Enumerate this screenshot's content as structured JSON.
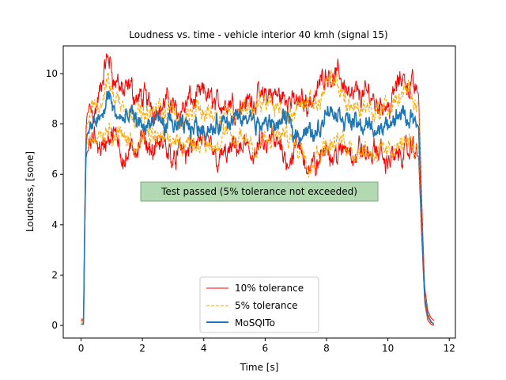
{
  "chart_data": {
    "type": "line",
    "title": "Loudness vs. time - vehicle interior 40 kmh (signal 15)",
    "xlabel": "Time [s]",
    "ylabel": "Loudness, [sone]",
    "xlim": [
      -0.58,
      12.2
    ],
    "ylim": [
      -0.5,
      11.1
    ],
    "xticks": [
      0,
      2,
      4,
      6,
      8,
      10,
      12
    ],
    "yticks": [
      0,
      2,
      4,
      6,
      8,
      10
    ],
    "grid": false,
    "legend_position": "lower-center",
    "annotation": {
      "text": "Test passed (5% tolerance not exceeded)",
      "x": 5.8,
      "y": 5.35,
      "facecolor": "#b2d9b2",
      "edgecolor": "#7fa87f"
    },
    "series": [
      {
        "name": "10% tolerance",
        "color": "#ff0000",
        "style": "solid",
        "x": [
          0,
          0.08,
          0.12,
          0.16,
          0.2,
          0.3,
          0.5,
          0.7,
          0.9,
          1.1,
          1.5,
          2,
          3,
          4,
          5,
          6,
          7,
          7.5,
          8,
          9,
          10,
          10.5,
          10.8,
          11.0,
          11.1,
          11.2,
          11.3,
          11.4,
          11.5
        ],
        "upper": [
          0.25,
          0.25,
          4.5,
          7.8,
          8.4,
          8.6,
          8.9,
          9.4,
          10.5,
          9.7,
          9.1,
          8.9,
          8.8,
          9.0,
          8.9,
          9.1,
          8.9,
          9.0,
          10.3,
          9.2,
          8.9,
          9.9,
          9.5,
          9.2,
          5.0,
          1.5,
          0.6,
          0.3,
          0.2
        ],
        "lower": [
          0.2,
          0.2,
          3.5,
          6.6,
          6.9,
          7.0,
          7.1,
          7.2,
          7.4,
          7.2,
          6.9,
          6.9,
          6.9,
          7.0,
          6.8,
          7.0,
          6.9,
          6.2,
          6.9,
          6.8,
          6.6,
          6.8,
          6.9,
          6.7,
          3.5,
          0.9,
          0.2,
          0.05,
          0.0
        ]
      },
      {
        "name": "5% tolerance",
        "color": "#ffa500",
        "style": "dashed",
        "x": [
          0,
          0.08,
          0.12,
          0.16,
          0.2,
          0.3,
          0.5,
          0.7,
          0.9,
          1.1,
          1.5,
          2,
          3,
          4,
          5,
          6,
          7,
          7.5,
          8,
          9,
          10,
          10.5,
          10.8,
          11.0,
          11.1,
          11.2,
          11.3,
          11.4,
          11.5
        ],
        "upper": [
          0.15,
          0.15,
          4.2,
          7.5,
          8.0,
          8.2,
          8.5,
          8.9,
          9.8,
          9.1,
          8.6,
          8.5,
          8.4,
          8.6,
          8.5,
          8.7,
          8.5,
          8.6,
          9.6,
          8.7,
          8.5,
          9.3,
          9.0,
          8.8,
          4.7,
          1.3,
          0.5,
          0.2,
          0.1
        ],
        "lower": [
          0.1,
          0.1,
          3.8,
          6.9,
          7.3,
          7.4,
          7.5,
          7.6,
          7.9,
          7.6,
          7.3,
          7.3,
          7.3,
          7.4,
          7.2,
          7.4,
          7.3,
          6.7,
          7.4,
          7.2,
          7.0,
          7.3,
          7.3,
          7.1,
          3.8,
          1.0,
          0.3,
          0.1,
          0.05
        ]
      },
      {
        "name": "MoSQITo",
        "color": "#1f77b4",
        "style": "solid",
        "x": [
          0,
          0.08,
          0.12,
          0.16,
          0.2,
          0.3,
          0.5,
          0.7,
          0.9,
          1.1,
          1.5,
          2,
          3,
          4,
          5,
          6,
          7,
          7.5,
          8,
          9,
          10,
          10.5,
          10.8,
          11.0,
          11.1,
          11.2,
          11.3,
          11.4,
          11.5
        ],
        "y": [
          0.05,
          0.05,
          4.0,
          7.2,
          7.6,
          7.8,
          8.0,
          8.3,
          9.2,
          8.4,
          8.0,
          7.9,
          7.8,
          8.0,
          7.9,
          8.0,
          7.9,
          7.6,
          8.5,
          8.0,
          7.8,
          8.3,
          8.2,
          7.9,
          4.2,
          1.1,
          0.4,
          0.15,
          0.05
        ]
      }
    ]
  }
}
